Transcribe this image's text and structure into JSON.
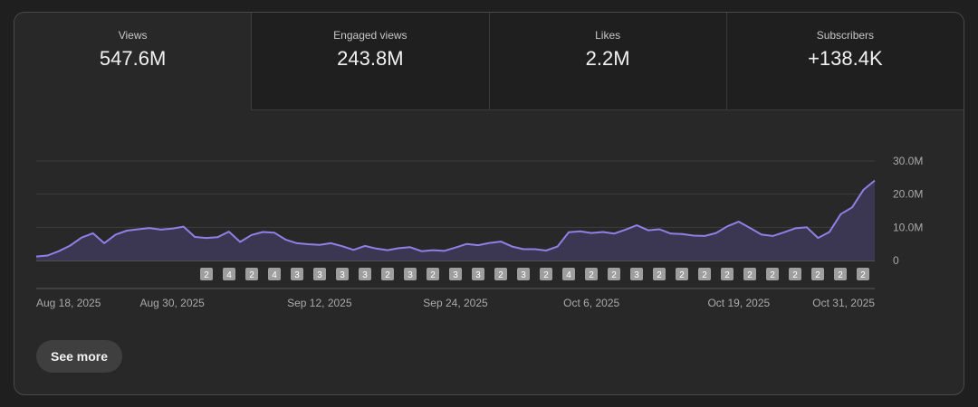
{
  "metrics": [
    {
      "label": "Views",
      "value": "547.6M",
      "active": true
    },
    {
      "label": "Engaged views",
      "value": "243.8M",
      "active": false
    },
    {
      "label": "Likes",
      "value": "2.2M",
      "active": false
    },
    {
      "label": "Subscribers",
      "value": "+138.4K",
      "active": false
    }
  ],
  "colors": {
    "line": "#8f80e6",
    "fill": "#3b3651",
    "marker_bg": "#9e9e9e",
    "marker_text": "#ffffff"
  },
  "chart_data": {
    "type": "area",
    "series": [
      {
        "values": [
          1.2,
          1.5,
          2.8,
          4.5,
          6.9,
          8.2,
          5.2,
          7.8,
          9.0,
          9.4,
          9.8,
          9.3,
          9.6,
          10.2,
          7.1,
          6.8,
          7.0,
          8.7,
          5.6,
          7.7,
          8.6,
          8.4,
          6.3,
          5.2,
          4.9,
          4.7,
          5.2,
          4.3,
          3.2,
          4.4,
          3.6,
          3.1,
          3.7,
          4.0,
          2.8,
          3.1,
          2.9,
          3.9,
          5.0,
          4.6,
          5.3,
          5.7,
          4.2,
          3.4,
          3.4,
          3.0,
          4.2,
          8.5,
          8.8,
          8.3,
          8.6,
          8.1,
          9.3,
          10.6,
          9.1,
          9.4,
          8.1,
          8.0,
          7.5,
          7.4,
          8.3,
          10.3,
          11.7,
          9.8,
          7.8,
          7.4,
          8.5,
          9.7,
          10.0,
          6.8,
          8.6,
          14.0,
          16.0,
          21.3,
          24.1
        ]
      }
    ],
    "x_tick_labels": [
      "Aug 18, 2025",
      "Aug 30, 2025",
      "Sep 12, 2025",
      "Sep 24, 2025",
      "Oct 6, 2025",
      "Oct 19, 2025",
      "Oct 31, 2025"
    ],
    "x_tick_days": [
      0,
      12,
      25,
      37,
      49,
      62,
      74
    ],
    "y_tick_labels": [
      "30.0M",
      "20.0M",
      "10.0M",
      "0"
    ],
    "y_tick_values": [
      30,
      20,
      10,
      0
    ],
    "ylim": [
      0,
      30
    ],
    "grid": true,
    "markers": [
      "2",
      "4",
      "2",
      "4",
      "3",
      "3",
      "3",
      "3",
      "2",
      "3",
      "2",
      "3",
      "3",
      "2",
      "3",
      "2",
      "4",
      "2",
      "2",
      "3",
      "2",
      "2",
      "2",
      "2",
      "2",
      "2",
      "2",
      "2",
      "2",
      "2"
    ]
  },
  "see_more_label": "See more"
}
